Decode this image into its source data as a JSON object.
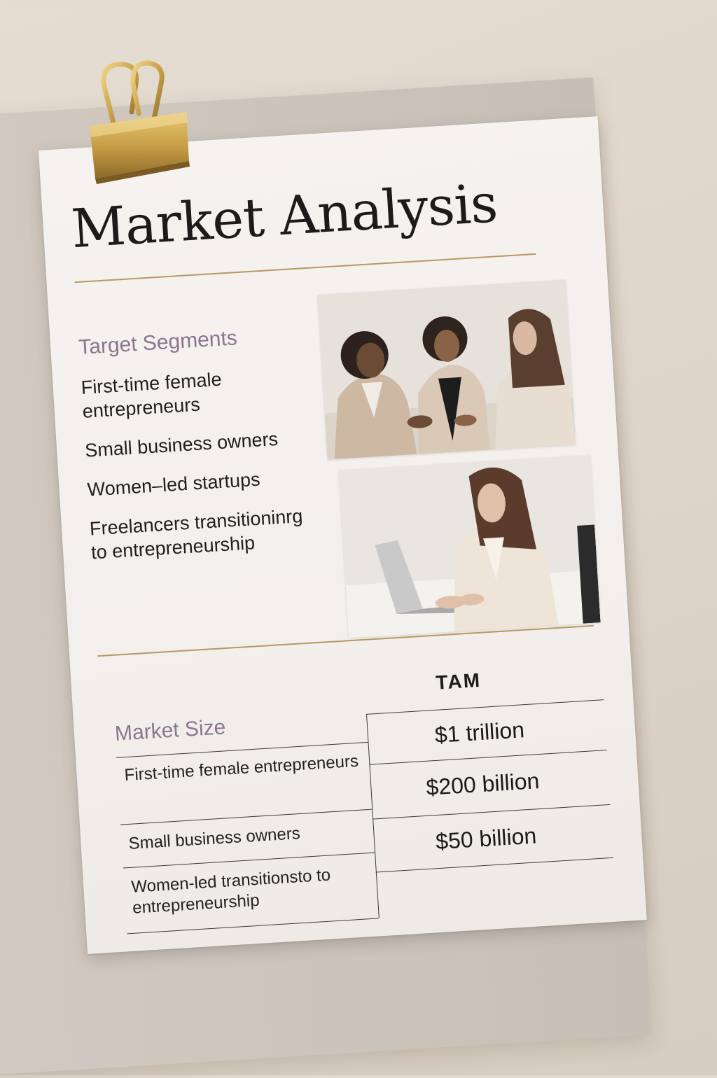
{
  "document": {
    "title": "Market Analysis",
    "target_segments": {
      "heading": "Target Segments",
      "items": [
        "First-time female entrepreneurs",
        "Small business owners",
        "Women–led startups",
        "Freelancers transitioninrg to entrepreneurship"
      ]
    },
    "market_size": {
      "heading": "Market Size",
      "column_header": "TAM",
      "rows": [
        {
          "segment": "First-time female entrepreneurs",
          "tam": "$1 trillion"
        },
        {
          "segment": "Small business owners",
          "tam": "$200 billion"
        },
        {
          "segment": "Women-led transitionsto to entrepreneurship",
          "tam": "$50 billion"
        }
      ]
    },
    "photos": [
      {
        "icon": "team-meeting-photo"
      },
      {
        "icon": "woman-laptop-photo"
      }
    ],
    "colors": {
      "accent_gold": "#b8985f",
      "heading_mauve": "#8d7590",
      "clip_gold": "#c9a24a"
    }
  }
}
